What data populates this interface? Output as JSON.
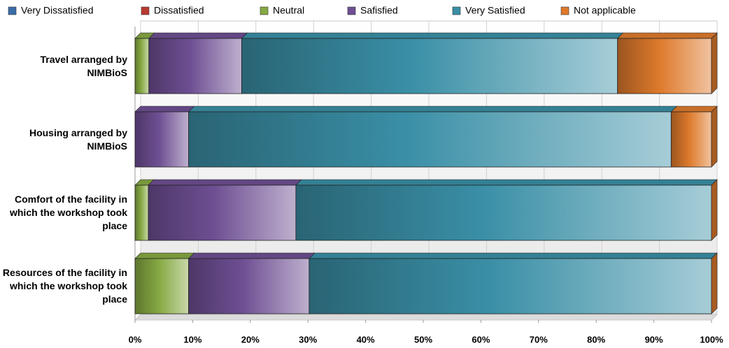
{
  "chart_data": {
    "type": "bar",
    "orientation": "horizontal",
    "stacked": true,
    "categories": [
      "Travel arranged by NIMBioS",
      "Housing arranged by NIMBioS",
      "Comfort of the facility in which the workshop took place",
      "Resources of the facility in which the workshop took place"
    ],
    "series": [
      {
        "name": "Very Dissatisfied",
        "color": "#3b6ea8",
        "values": [
          0,
          0,
          0,
          0
        ]
      },
      {
        "name": "Dissatisfied",
        "color": "#b83a30",
        "values": [
          0,
          0,
          0,
          0
        ]
      },
      {
        "name": "Neutral",
        "color": "#86a943",
        "values": [
          2.4,
          0,
          2.3,
          9.3
        ]
      },
      {
        "name": "Safisfied",
        "color": "#6e4f93",
        "values": [
          16.1,
          9.3,
          25.6,
          20.9
        ]
      },
      {
        "name": "Very Satisfied",
        "color": "#3a8fa6",
        "values": [
          65.2,
          83.7,
          72.1,
          69.8
        ]
      },
      {
        "name": "Not applicable",
        "color": "#de7a2c",
        "values": [
          16.3,
          7.0,
          0,
          0
        ]
      }
    ],
    "xlim": [
      0,
      100
    ],
    "xticks": [
      {
        "value": 0,
        "label": "0%"
      },
      {
        "value": 10,
        "label": "10%"
      },
      {
        "value": 20,
        "label": "20%"
      },
      {
        "value": 30,
        "label": "30%"
      },
      {
        "value": 40,
        "label": "40%"
      },
      {
        "value": 50,
        "label": "50%"
      },
      {
        "value": 60,
        "label": "60%"
      },
      {
        "value": 70,
        "label": "70%"
      },
      {
        "value": 80,
        "label": "80%"
      },
      {
        "value": 90,
        "label": "90%"
      },
      {
        "value": 100,
        "label": "100%"
      }
    ],
    "grid": true,
    "legend": "top"
  }
}
